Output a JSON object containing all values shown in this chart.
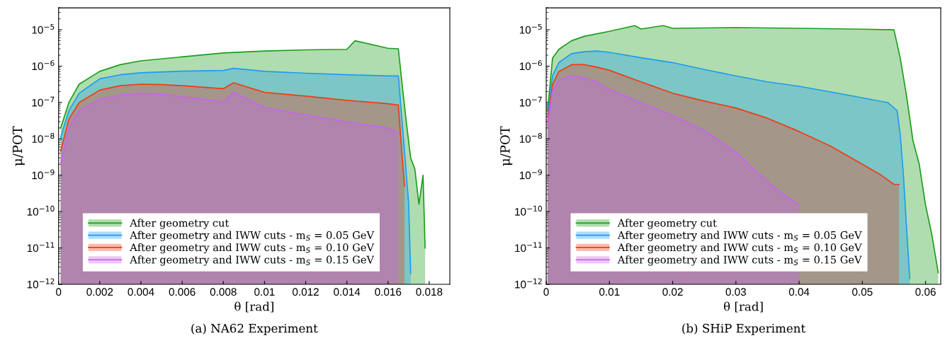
{
  "chart_data": [
    {
      "type": "area",
      "title": "(a) NA62 Experiment",
      "xlabel": "θ [rad]",
      "ylabel": "μ/POT",
      "log": "y",
      "grid": false,
      "legend": "bottom left",
      "xlim": [
        0,
        0.019
      ],
      "ylim": [
        1e-12,
        4e-05
      ],
      "xticks": [
        0,
        0.002,
        0.004,
        0.006,
        0.008,
        0.01,
        0.012,
        0.014,
        0.016,
        0.018
      ],
      "yticks": [
        {
          "value": 1e-12,
          "label": "10$^{−12}$"
        },
        {
          "value": 1e-11,
          "label": "10$^{−11}$"
        },
        {
          "value": 1e-10,
          "label": "10$^{−10}$"
        },
        {
          "value": 1e-09,
          "label": "10$^{−9}$"
        },
        {
          "value": 1e-08,
          "label": "10$^{−8}$"
        },
        {
          "value": 1e-07,
          "label": "10$^{−7}$"
        },
        {
          "value": 1e-06,
          "label": "10$^{−6}$"
        },
        {
          "value": 1e-05,
          "label": "10$^{−5}$"
        }
      ],
      "series": [
        {
          "name": "After geometry cut",
          "color": "#1a9e1a",
          "x": [
            0.0001,
            0.0005,
            0.001,
            0.002,
            0.003,
            0.004,
            0.006,
            0.008,
            0.01,
            0.012,
            0.014,
            0.0144,
            0.016,
            0.0165,
            0.0167,
            0.0169,
            0.0171,
            0.0173,
            0.0175,
            0.0177,
            0.0178
          ],
          "values": [
            2e-08,
            1e-07,
            3.2e-07,
            7.2e-07,
            1.1e-06,
            1.4e-06,
            1.8e-06,
            2.3e-06,
            2.6e-06,
            2.8e-06,
            2.9e-06,
            5e-06,
            3.1e-06,
            3e-06,
            2.6e-07,
            2.5e-08,
            3e-09,
            1.5e-09,
            1.6e-10,
            1e-09,
            1e-11
          ]
        },
        {
          "name": "After geometry and IWW cuts - m$_{S}$ = 0.05 GeV",
          "color": "#1e9bf0",
          "x": [
            0.0001,
            0.0005,
            0.001,
            0.002,
            0.003,
            0.004,
            0.006,
            0.008,
            0.0085,
            0.01,
            0.012,
            0.014,
            0.016,
            0.0165,
            0.0168,
            0.017,
            0.0171
          ],
          "values": [
            1.1e-08,
            6e-08,
            1.8e-07,
            4.5e-07,
            5.8e-07,
            6.6e-07,
            7.3e-07,
            7.6e-07,
            8.7e-07,
            7.2e-07,
            6.4e-07,
            5.8e-07,
            5.4e-07,
            5.4e-07,
            4.6e-09,
            1.7e-10,
            2e-12
          ]
        },
        {
          "name": "After geometry and IWW cuts - m$_{S}$ = 0.10 GeV",
          "color": "#f03c14",
          "x": [
            0.0001,
            0.0005,
            0.001,
            0.002,
            0.003,
            0.004,
            0.005,
            0.006,
            0.008,
            0.0085,
            0.01,
            0.012,
            0.014,
            0.016,
            0.0165,
            0.0167,
            0.0168
          ],
          "values": [
            4.6e-09,
            3.5e-08,
            1e-07,
            2.2e-07,
            2.9e-07,
            3.2e-07,
            3.1e-07,
            2.9e-07,
            2.4e-07,
            3.5e-07,
            1.9e-07,
            1.5e-07,
            1.15e-07,
            9.3e-08,
            8.5e-08,
            2.6e-09,
            5e-10
          ]
        },
        {
          "name": "After geometry and IWW cuts - m$_{S}$ = 0.15 GeV",
          "color": "#c864f0",
          "x": [
            0.0001,
            0.0005,
            0.001,
            0.002,
            0.003,
            0.004,
            0.005,
            0.006,
            0.008,
            0.0085,
            0.01,
            0.012,
            0.014,
            0.016,
            0.0165
          ],
          "values": [
            2.2e-09,
            2e-08,
            6e-08,
            1.25e-07,
            1.6e-07,
            1.8e-07,
            1.7e-07,
            1.45e-07,
            1.05e-07,
            1.9e-07,
            7.3e-08,
            4.6e-08,
            2.9e-08,
            2e-08,
            1.5e-08
          ]
        }
      ]
    },
    {
      "type": "area",
      "title": "(b) SHiP Experiment",
      "xlabel": "θ [rad]",
      "ylabel": "μ/POT",
      "log": "y",
      "grid": false,
      "legend": "bottom left",
      "xlim": [
        0,
        0.0624
      ],
      "ylim": [
        1e-12,
        4e-05
      ],
      "xticks": [
        0,
        0.01,
        0.02,
        0.03,
        0.04,
        0.05,
        0.06
      ],
      "yticks": [
        {
          "value": 1e-12,
          "label": "10$^{−12}$"
        },
        {
          "value": 1e-11,
          "label": "10$^{−11}$"
        },
        {
          "value": 1e-10,
          "label": "10$^{−10}$"
        },
        {
          "value": 1e-09,
          "label": "10$^{−9}$"
        },
        {
          "value": 1e-08,
          "label": "10$^{−8}$"
        },
        {
          "value": 1e-07,
          "label": "10$^{−7}$"
        },
        {
          "value": 1e-06,
          "label": "10$^{−6}$"
        },
        {
          "value": 1e-05,
          "label": "10$^{−5}$"
        }
      ],
      "series": [
        {
          "name": "After geometry cut",
          "color": "#1a9e1a",
          "x": [
            0.0002,
            0.001,
            0.002,
            0.004,
            0.006,
            0.01,
            0.014,
            0.015,
            0.0185,
            0.02,
            0.03,
            0.04,
            0.05,
            0.055,
            0.056,
            0.057,
            0.058,
            0.059,
            0.06,
            0.061,
            0.062
          ],
          "values": [
            5.8e-08,
            1.65e-06,
            2.9e-06,
            5e-06,
            6.6e-06,
            9.1e-06,
            1.3e-05,
            1.05e-05,
            1.3e-05,
            1.1e-05,
            1.15e-05,
            1.1e-05,
            1.04e-05,
            1e-05,
            1.65e-06,
            1.5e-07,
            9e-09,
            2e-09,
            1.5e-10,
            2.3e-11,
            2.1e-12
          ]
        },
        {
          "name": "After geometry and IWW cuts - m$_{S}$ = 0.05 GeV",
          "color": "#1e9bf0",
          "x": [
            0.0002,
            0.001,
            0.002,
            0.004,
            0.006,
            0.008,
            0.01,
            0.015,
            0.02,
            0.025,
            0.03,
            0.035,
            0.04,
            0.045,
            0.05,
            0.054,
            0.0555,
            0.056,
            0.0565,
            0.057,
            0.0575
          ],
          "values": [
            4e-08,
            5.4e-07,
            1.25e-06,
            2.2e-06,
            2.5e-06,
            2.6e-06,
            2.4e-06,
            1.7e-06,
            1.25e-06,
            8.1e-07,
            5.4e-07,
            3.7e-07,
            2.8e-07,
            1.95e-07,
            1.35e-07,
            1e-07,
            6e-08,
            1.3e-08,
            1e-09,
            3.5e-11,
            1.45e-12
          ]
        },
        {
          "name": "After geometry and IWW cuts - m$_{S}$ = 0.10 GeV",
          "color": "#f03c14",
          "x": [
            0.0002,
            0.001,
            0.002,
            0.004,
            0.006,
            0.008,
            0.01,
            0.015,
            0.02,
            0.025,
            0.03,
            0.035,
            0.04,
            0.045,
            0.05,
            0.053,
            0.055,
            0.0558
          ],
          "values": [
            2.8e-08,
            3.1e-07,
            7.1e-07,
            1.1e-06,
            1.1e-06,
            9.4e-07,
            7.7e-07,
            3.7e-07,
            1.8e-07,
            1.1e-07,
            7.1e-08,
            3.7e-08,
            1.6e-08,
            6.3e-09,
            2e-09,
            1e-09,
            5.6e-10,
            5.6e-10
          ]
        },
        {
          "name": "After geometry and IWW cuts - m$_{S}$ = 0.15 GeV",
          "color": "#c864f0",
          "x": [
            0.0002,
            0.001,
            0.002,
            0.004,
            0.006,
            0.008,
            0.01,
            0.015,
            0.02,
            0.025,
            0.03,
            0.033,
            0.036,
            0.04
          ],
          "values": [
            2.3e-08,
            2.1e-07,
            4.1e-07,
            5.6e-07,
            4.7e-07,
            3.7e-07,
            2.3e-07,
            1e-07,
            4.4e-08,
            1.7e-08,
            4.3e-09,
            1.4e-09,
            4.7e-10,
            1.5e-10
          ]
        }
      ]
    }
  ]
}
